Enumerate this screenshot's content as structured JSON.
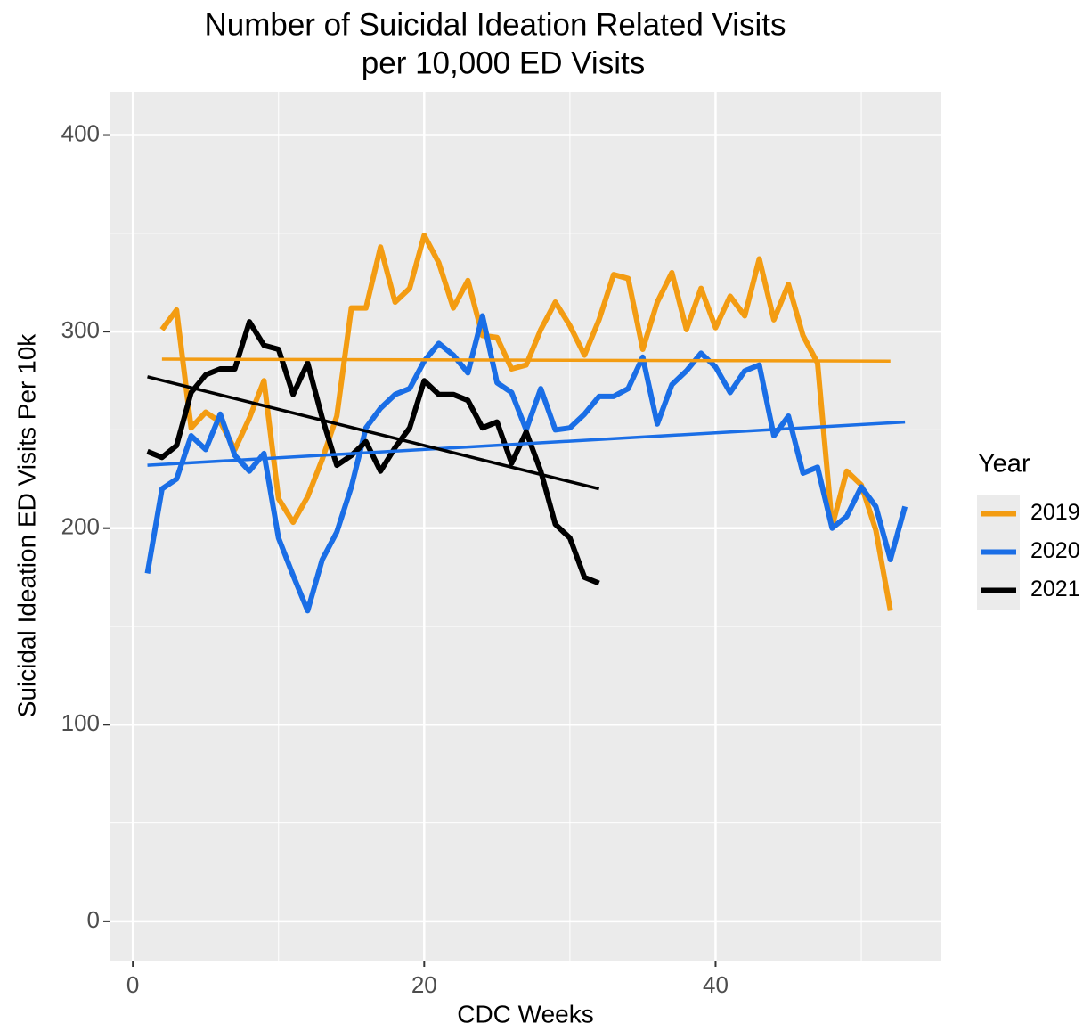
{
  "chart_data": {
    "type": "line",
    "title": [
      "Number of Suicidal Ideation Related Visits",
      "per 10,000 ED Visits"
    ],
    "x_label": "CDC Weeks",
    "y_label": "Suicidal Ideation ED Visits Per 10k",
    "xlim": [
      -1.6,
      55.5
    ],
    "ylim": [
      -20,
      422
    ],
    "xticks": [
      0,
      20,
      40
    ],
    "yticks": [
      0,
      100,
      200,
      300,
      400
    ],
    "x_minor_ticks": [
      10,
      30,
      50
    ],
    "y_minor_ticks": [
      50,
      150,
      250,
      350
    ],
    "grid": true,
    "legend_title": "Year",
    "legend_position": "right",
    "series": [
      {
        "name": "2019",
        "color": "#f39c12",
        "x": [
          2,
          3,
          4,
          5,
          6,
          7,
          8,
          9,
          10,
          11,
          12,
          13,
          14,
          15,
          16,
          17,
          18,
          19,
          20,
          21,
          22,
          23,
          24,
          25,
          26,
          27,
          28,
          29,
          30,
          31,
          32,
          33,
          34,
          35,
          36,
          37,
          38,
          39,
          40,
          41,
          42,
          43,
          44,
          45,
          46,
          47,
          48,
          49,
          50,
          51,
          52
        ],
        "values": [
          301,
          311,
          251,
          259,
          254,
          240,
          256,
          275,
          215,
          203,
          216,
          235,
          257,
          312,
          312,
          343,
          315,
          322,
          349,
          335,
          312,
          326,
          298,
          297,
          281,
          283,
          301,
          315,
          303,
          288,
          306,
          329,
          327,
          291,
          315,
          330,
          301,
          322,
          302,
          318,
          308,
          337,
          306,
          324,
          298,
          284,
          201,
          229,
          222,
          199,
          158
        ],
        "trend": {
          "x": [
            2,
            52
          ],
          "values": [
            286,
            285
          ]
        }
      },
      {
        "name": "2020",
        "color": "#1a6ee6",
        "x": [
          1,
          2,
          3,
          4,
          5,
          6,
          7,
          8,
          9,
          10,
          11,
          12,
          13,
          14,
          15,
          16,
          17,
          18,
          19,
          20,
          21,
          22,
          23,
          24,
          25,
          26,
          27,
          28,
          29,
          30,
          31,
          32,
          33,
          34,
          35,
          36,
          37,
          38,
          39,
          40,
          41,
          42,
          43,
          44,
          45,
          46,
          47,
          48,
          49,
          50,
          51,
          52,
          53
        ],
        "values": [
          177,
          220,
          225,
          247,
          240,
          258,
          237,
          229,
          238,
          195,
          176,
          158,
          184,
          198,
          221,
          251,
          261,
          268,
          271,
          285,
          294,
          288,
          279,
          308,
          274,
          269,
          250,
          271,
          250,
          251,
          258,
          267,
          267,
          271,
          287,
          253,
          273,
          280,
          289,
          282,
          269,
          280,
          283,
          247,
          257,
          228,
          231,
          200,
          206,
          221,
          211,
          184,
          211
        ],
        "trend": {
          "x": [
            1,
            53
          ],
          "values": [
            232,
            254
          ]
        }
      },
      {
        "name": "2021",
        "color": "#000000",
        "x": [
          1,
          2,
          3,
          4,
          5,
          6,
          7,
          8,
          9,
          10,
          11,
          12,
          13,
          14,
          15,
          16,
          17,
          18,
          19,
          20,
          21,
          22,
          23,
          24,
          25,
          26,
          27,
          28,
          29,
          30,
          31,
          32
        ],
        "values": [
          239,
          236,
          242,
          269,
          278,
          281,
          281,
          305,
          293,
          291,
          268,
          284,
          256,
          232,
          237,
          244,
          229,
          241,
          251,
          275,
          268,
          268,
          265,
          251,
          254,
          233,
          249,
          229,
          202,
          195,
          175,
          172
        ],
        "trend": {
          "x": [
            1,
            32
          ],
          "values": [
            277,
            220
          ]
        }
      }
    ]
  }
}
